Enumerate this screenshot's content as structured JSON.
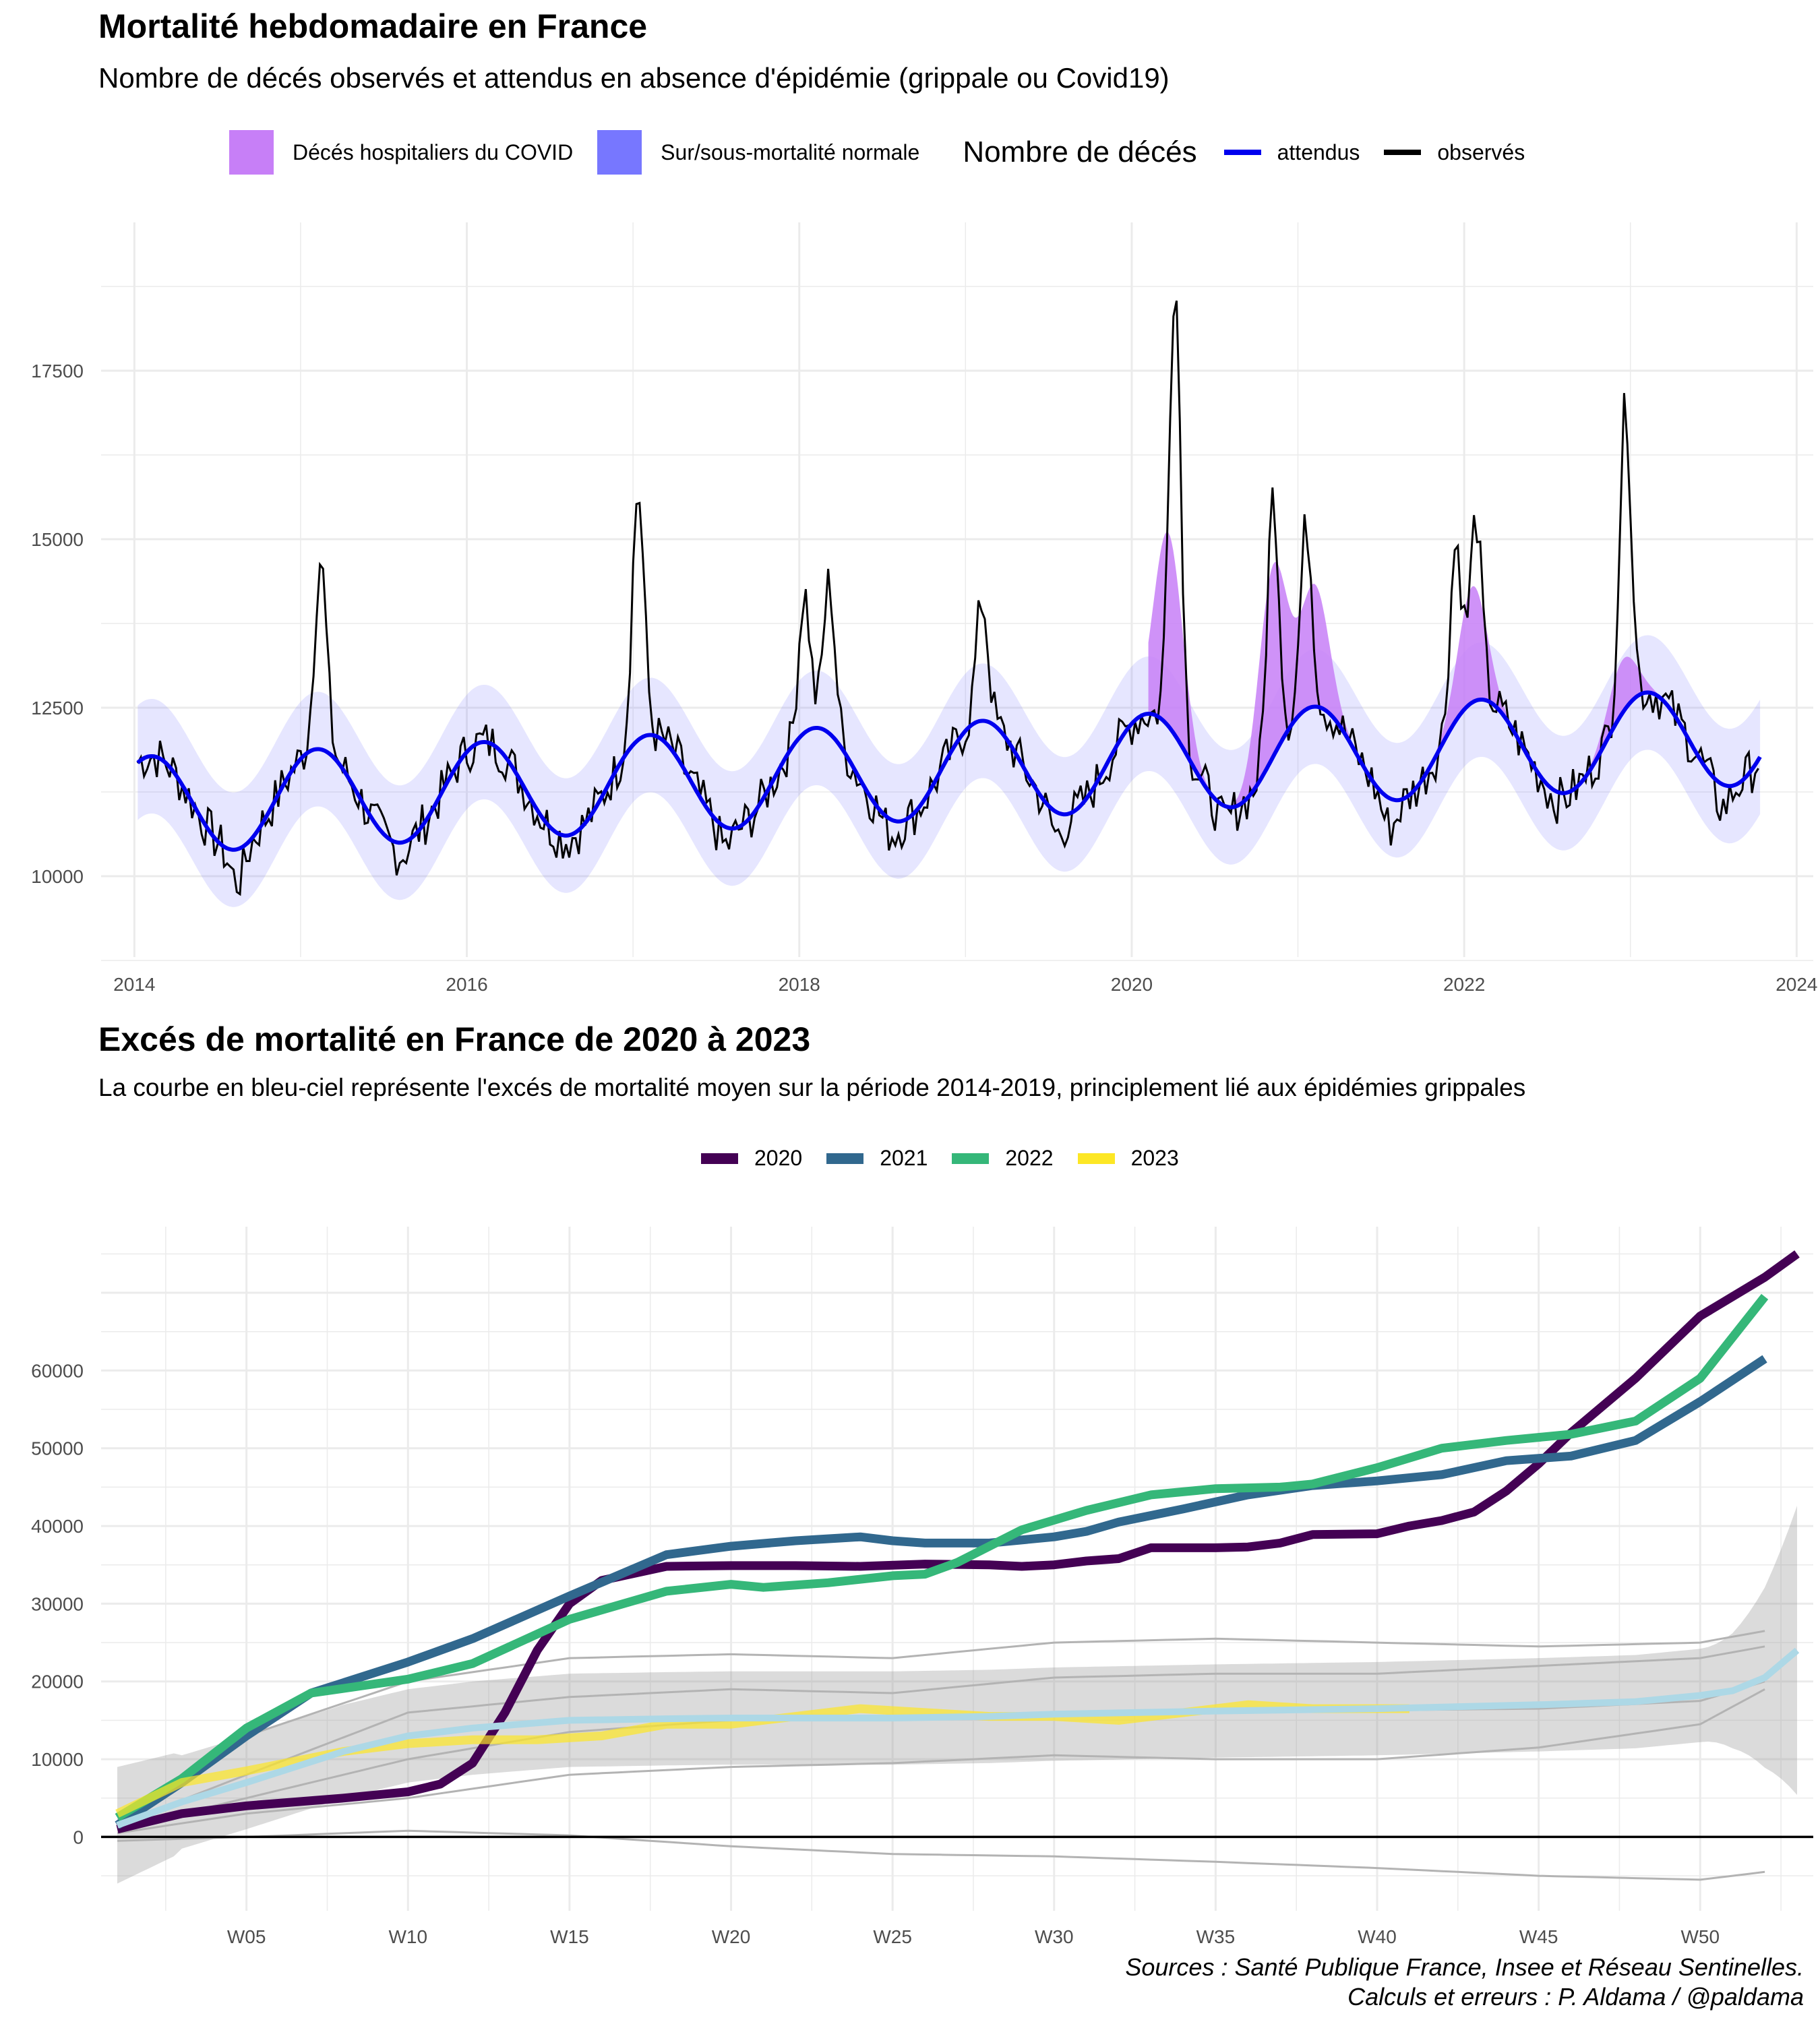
{
  "chart1": {
    "title": "Mortalité hebdomadaire en France",
    "subtitle": "Nombre de décés observés et attendus en absence d'épidémie (grippale ou Covid19)",
    "legend": {
      "fill_items": [
        {
          "label": "Décés hospitaliers du COVID",
          "color": "#c77ff7"
        },
        {
          "label": "Sur/sous-mortalité normale",
          "color": "#7777ff"
        }
      ],
      "line_title": "Nombre de décés",
      "line_items": [
        {
          "label": "attendus",
          "color": "#0000ee"
        },
        {
          "label": "observés",
          "color": "#000000"
        }
      ]
    }
  },
  "chart2": {
    "title": "Excés de mortalité en France de 2020 à 2023",
    "subtitle": "La courbe en bleu-ciel représente l'excés de mortalité moyen sur la période 2014-2019, principlement lié aux épidémies grippales",
    "legend": [
      {
        "label": "2020",
        "color": "#440154"
      },
      {
        "label": "2021",
        "color": "#31688e"
      },
      {
        "label": "2022",
        "color": "#35b779"
      },
      {
        "label": "2023",
        "color": "#fde725"
      }
    ]
  },
  "source": {
    "line1": "Sources : Santé Publique France, Insee et Réseau Sentinelles.",
    "line2": "Calculs et erreurs : P. Aldama / @paldama"
  },
  "chart_data": [
    {
      "type": "line",
      "x_ticks": [
        "2014",
        "2016",
        "2018",
        "2020",
        "2022",
        "2024"
      ],
      "y_ticks": [
        "10000",
        "12500",
        "15000",
        "17500"
      ],
      "xlim": [
        2013.8,
        2024.1
      ],
      "ylim": [
        8800,
        19700
      ],
      "grid": true,
      "legend_position": "top",
      "expected_model": {
        "mean_start": 11050,
        "mean_slope_per_year": 105,
        "amplitude": 720,
        "band_halfwidth": 850
      },
      "observed_peaks": [
        {
          "x": 2015.12,
          "y": 14950
        },
        {
          "x": 2017.03,
          "y": 15980
        },
        {
          "x": 2018.03,
          "y": 14450
        },
        {
          "x": 2018.18,
          "y": 14600
        },
        {
          "x": 2019.1,
          "y": 14350
        },
        {
          "x": 2020.26,
          "y": 19100
        },
        {
          "x": 2020.85,
          "y": 15900
        },
        {
          "x": 2021.05,
          "y": 15450
        },
        {
          "x": 2021.95,
          "y": 15200
        },
        {
          "x": 2022.07,
          "y": 15550
        },
        {
          "x": 2022.97,
          "y": 17200
        }
      ],
      "observed_troughs": [
        {
          "x": 2014.62,
          "y": 9300
        },
        {
          "x": 2015.6,
          "y": 9900
        },
        {
          "x": 2016.6,
          "y": 10200
        },
        {
          "x": 2017.55,
          "y": 9950
        },
        {
          "x": 2018.55,
          "y": 10200
        },
        {
          "x": 2019.55,
          "y": 10100
        },
        {
          "x": 2020.55,
          "y": 10350
        },
        {
          "x": 2021.55,
          "y": 10150
        },
        {
          "x": 2022.55,
          "y": 10750
        },
        {
          "x": 2023.55,
          "y": 10500
        }
      ],
      "covid_hospital_deaths": [
        {
          "x": 2020.22,
          "y_max": 15100
        },
        {
          "x": 2020.85,
          "y_max": 14600
        },
        {
          "x": 2021.1,
          "y_max": 14300
        },
        {
          "x": 2022.05,
          "y_max": 14300
        },
        {
          "x": 2022.95,
          "y_max": 13200
        }
      ]
    },
    {
      "type": "line",
      "x_ticks": [
        "W05",
        "W10",
        "W15",
        "W20",
        "W25",
        "W30",
        "W35",
        "W40",
        "W45",
        "W50"
      ],
      "y_ticks": [
        "0",
        "10000",
        "20000",
        "30000",
        "40000",
        "50000",
        "60000"
      ],
      "xlim": [
        0.5,
        53.5
      ],
      "ylim": [
        -9500,
        78500
      ],
      "grid": true,
      "legend_position": "top",
      "series": [
        {
          "name": "2020",
          "x": [
            1,
            3,
            5,
            8,
            10,
            11,
            12,
            13,
            14,
            15,
            16,
            18,
            20,
            22,
            24,
            26,
            28,
            29,
            30,
            31,
            32,
            33,
            35,
            36,
            37,
            38,
            40,
            41,
            42,
            43,
            44,
            45,
            46,
            48,
            50,
            52,
            53
          ],
          "y": [
            1000,
            3000,
            4000,
            5000,
            5800,
            6800,
            9500,
            16000,
            24000,
            30000,
            33000,
            34800,
            34900,
            34900,
            34800,
            35100,
            35000,
            34800,
            35000,
            35500,
            35800,
            37200,
            37200,
            37300,
            37800,
            38900,
            39000,
            40000,
            40700,
            41800,
            44500,
            48000,
            52000,
            59000,
            67000,
            72000,
            75000
          ]
        },
        {
          "name": "2021",
          "x": [
            1,
            3,
            5,
            7,
            10,
            12,
            15,
            18,
            20,
            22,
            24,
            25,
            26,
            28,
            30,
            31,
            32,
            34,
            36,
            38,
            40,
            42,
            44,
            46,
            48,
            50,
            52
          ],
          "y": [
            1500,
            7000,
            13000,
            18500,
            22500,
            25500,
            31000,
            36300,
            37400,
            38100,
            38600,
            38100,
            37800,
            37800,
            38600,
            39300,
            40500,
            42200,
            44000,
            45200,
            45800,
            46600,
            48400,
            49000,
            51000,
            56000,
            61500
          ]
        },
        {
          "name": "2022",
          "x": [
            1,
            3,
            5,
            7,
            10,
            12,
            15,
            18,
            20,
            21,
            23,
            25,
            26,
            27,
            29,
            31,
            33,
            35,
            37,
            38,
            40,
            42,
            44,
            46,
            48,
            50,
            52
          ],
          "y": [
            2500,
            7500,
            14000,
            18500,
            20300,
            22300,
            28000,
            31600,
            32500,
            32100,
            32700,
            33600,
            33800,
            35300,
            39500,
            42000,
            44000,
            44800,
            45000,
            45400,
            47500,
            50000,
            51000,
            51800,
            53500,
            59000,
            69500
          ]
        },
        {
          "name": "2023",
          "x": [
            1,
            3,
            5,
            8,
            10,
            12,
            14,
            16,
            18,
            20,
            22,
            24,
            26,
            28,
            30,
            32,
            34,
            36,
            38,
            41
          ],
          "y": [
            3000,
            7000,
            8500,
            11000,
            12000,
            12500,
            12500,
            13000,
            14500,
            14500,
            15500,
            16500,
            16000,
            15500,
            15500,
            15000,
            16000,
            17000,
            16500,
            16500
          ]
        }
      ],
      "average_2014_2019": {
        "name": "2014-2019",
        "x": [
          1,
          3,
          5,
          8,
          10,
          12,
          15,
          18,
          20,
          22,
          25,
          28,
          30,
          35,
          40,
          45,
          48,
          50,
          51,
          52,
          53
        ],
        "y": [
          1500,
          4500,
          7000,
          11000,
          13000,
          14000,
          15000,
          15200,
          15300,
          15300,
          15300,
          15500,
          15800,
          16200,
          16500,
          17000,
          17400,
          18200,
          18800,
          20500,
          24000
        ]
      },
      "background_years": [
        {
          "x": [
            1,
            5,
            10,
            15,
            20,
            25,
            30,
            35,
            40,
            45,
            50,
            52
          ],
          "y": [
            2000,
            13000,
            20000,
            23000,
            23500,
            23000,
            25000,
            25500,
            25000,
            24500,
            25000,
            26500
          ]
        },
        {
          "x": [
            1,
            5,
            10,
            15,
            20,
            25,
            30,
            35,
            40,
            45,
            50,
            52
          ],
          "y": [
            1000,
            5000,
            10000,
            13500,
            15000,
            15500,
            16000,
            16200,
            16300,
            16500,
            17500,
            20000
          ]
        },
        {
          "x": [
            1,
            5,
            10,
            15,
            20,
            25,
            30,
            35,
            40,
            45,
            50,
            52
          ],
          "y": [
            -500,
            0,
            800,
            200,
            -1200,
            -2200,
            -2500,
            -3200,
            -4000,
            -5000,
            -5500,
            -4500
          ]
        },
        {
          "x": [
            1,
            5,
            10,
            15,
            20,
            25,
            30,
            35,
            40,
            45,
            50,
            52
          ],
          "y": [
            500,
            3000,
            5000,
            8000,
            9000,
            9500,
            10500,
            10000,
            10000,
            11500,
            14500,
            19000
          ]
        },
        {
          "x": [
            1,
            5,
            10,
            15,
            20,
            25,
            30,
            35,
            40,
            45,
            50,
            52
          ],
          "y": [
            1500,
            8000,
            16000,
            18000,
            19000,
            18500,
            20500,
            21000,
            21000,
            22000,
            23000,
            24500
          ]
        }
      ]
    }
  ]
}
